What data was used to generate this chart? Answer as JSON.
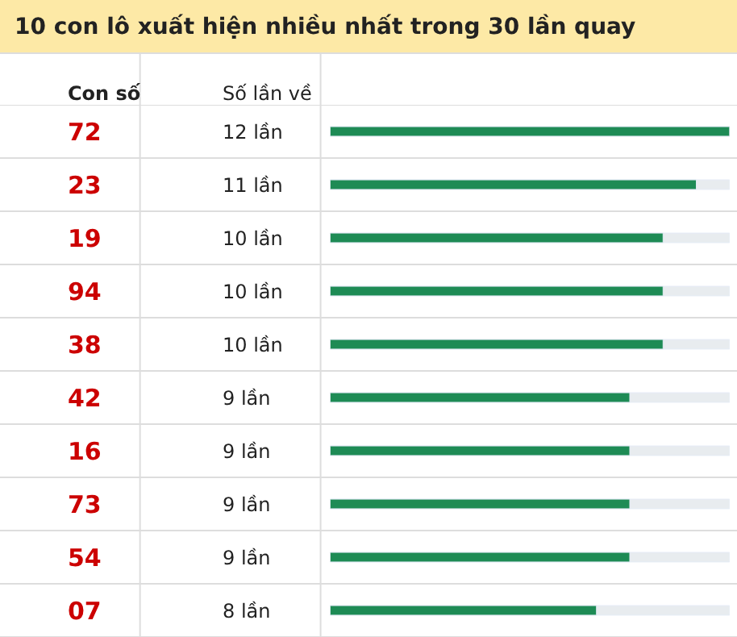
{
  "chart_data": {
    "type": "bar",
    "orientation": "horizontal",
    "title": "10 con lô xuất hiện nhiều nhất trong 30 lần quay",
    "categories": [
      "72",
      "23",
      "19",
      "94",
      "38",
      "42",
      "16",
      "73",
      "54",
      "07"
    ],
    "values": [
      12,
      11,
      10,
      10,
      10,
      9,
      9,
      9,
      9,
      8
    ],
    "value_labels": [
      "12 lần",
      "11 lần",
      "10 lần",
      "10 lần",
      "10 lần",
      "9 lần",
      "9 lần",
      "9 lần",
      "9 lần",
      "8 lần"
    ],
    "color": "#1e8b55",
    "annotations": [
      "Con số",
      "Số lần về"
    ]
  }
}
